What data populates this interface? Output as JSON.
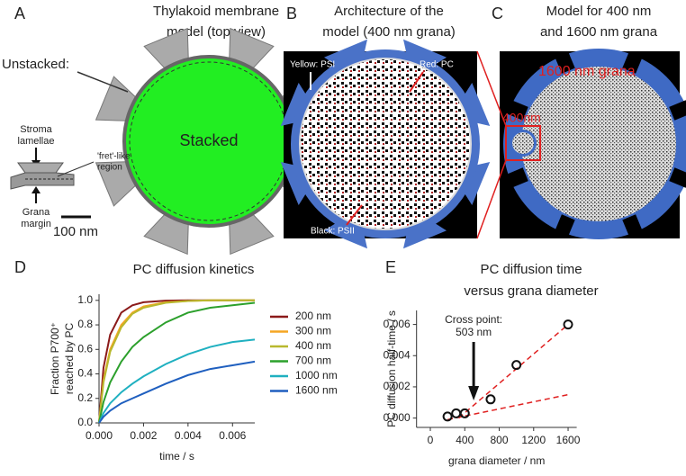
{
  "panels": [
    {
      "letter": "A",
      "title": [
        "Thylakoid membrane",
        "model (top view)"
      ],
      "unstacked": "Unstacked:",
      "stroma": [
        "Stroma",
        "lamellae"
      ],
      "fret": [
        "'fret'-like",
        "region"
      ],
      "margin": [
        "Grana",
        "margin"
      ],
      "stacked": "Stacked",
      "scale": "100 nm"
    },
    {
      "letter": "B",
      "title": [
        "Architecture of the",
        "model (400 nm grana)"
      ],
      "psi": "Yellow: PSI",
      "pc": "Red: PC",
      "psii": "Black: PSII"
    },
    {
      "letter": "C",
      "title": [
        "Model for 400 nm",
        "and 1600 nm grana"
      ],
      "big": "1600 nm grana",
      "small": "400nm"
    }
  ],
  "chart_data": [
    {
      "type": "line",
      "letter": "D",
      "title": [
        "PC diffusion kinetics"
      ],
      "ylabel": [
        "Fraction P700⁺",
        "reached by PC"
      ],
      "xlabel": "time / s",
      "x": [
        0,
        0.0002,
        0.0005,
        0.001,
        0.0015,
        0.002,
        0.003,
        0.004,
        0.005,
        0.006,
        0.007
      ],
      "series": [
        {
          "name": "200 nm",
          "color": "#8b1a1a",
          "values": [
            0,
            0.45,
            0.72,
            0.9,
            0.96,
            0.985,
            0.998,
            1,
            1,
            1,
            1
          ]
        },
        {
          "name": "300 nm",
          "color": "#f5a623",
          "values": [
            0,
            0.35,
            0.6,
            0.8,
            0.9,
            0.95,
            0.985,
            0.995,
            1,
            1,
            1
          ]
        },
        {
          "name": "400 nm",
          "color": "#b8b82e",
          "values": [
            0,
            0.33,
            0.58,
            0.78,
            0.89,
            0.94,
            0.98,
            0.995,
            1,
            1,
            1
          ]
        },
        {
          "name": "700 nm",
          "color": "#2ca02c",
          "values": [
            0,
            0.17,
            0.33,
            0.5,
            0.62,
            0.7,
            0.82,
            0.9,
            0.94,
            0.96,
            0.98
          ]
        },
        {
          "name": "1000 nm",
          "color": "#1fb0c0",
          "values": [
            0,
            0.08,
            0.16,
            0.25,
            0.32,
            0.38,
            0.48,
            0.56,
            0.62,
            0.66,
            0.68
          ]
        },
        {
          "name": "1600 nm",
          "color": "#1f5fbf",
          "values": [
            0,
            0.05,
            0.1,
            0.16,
            0.2,
            0.24,
            0.32,
            0.39,
            0.44,
            0.47,
            0.5
          ]
        }
      ],
      "xlim": [
        0,
        0.007
      ],
      "ylim": [
        0,
        1.05
      ],
      "xticks": [
        {
          "value": 0,
          "label": "0.000"
        },
        {
          "value": 0.002,
          "label": "0.002"
        },
        {
          "value": 0.004,
          "label": "0.004"
        },
        {
          "value": 0.006,
          "label": "0.006"
        }
      ],
      "yticks": [
        {
          "value": 0,
          "label": "0.0"
        },
        {
          "value": 0.2,
          "label": "0.2"
        },
        {
          "value": 0.4,
          "label": "0.4"
        },
        {
          "value": 0.6,
          "label": "0.6"
        },
        {
          "value": 0.8,
          "label": "0.8"
        },
        {
          "value": 1,
          "label": "1.0"
        }
      ]
    },
    {
      "type": "scatter",
      "letter": "E",
      "title": [
        "PC diffusion time",
        "versus grana diameter"
      ],
      "ylabel": [
        "PC diffusion half-time / s"
      ],
      "xlabel": "grana diameter / nm",
      "x": [
        200,
        300,
        400,
        700,
        1000,
        1600
      ],
      "values": [
        0.0001,
        0.0003,
        0.0003,
        0.0012,
        0.0034,
        0.006
      ],
      "fit_lines": [
        {
          "x": [
            330,
            1600
          ],
          "values": [
            0,
            0.006
          ]
        },
        {
          "x": [
            200,
            1600
          ],
          "values": [
            -0.0001,
            0.0015
          ]
        }
      ],
      "fit_color": "#e02020",
      "annotation": [
        "Cross point:",
        "503 nm"
      ],
      "annotation_x": 503,
      "xlim": [
        -160,
        1700
      ],
      "ylim": [
        -0.0006,
        0.0069
      ],
      "xticks": [
        0,
        400,
        800,
        1200,
        1600
      ],
      "yticks": [
        {
          "value": 0,
          "label": "0.000"
        },
        {
          "value": 0.002,
          "label": "0.002"
        },
        {
          "value": 0.004,
          "label": "0.004"
        },
        {
          "value": 0.006,
          "label": "0.006"
        }
      ]
    }
  ]
}
